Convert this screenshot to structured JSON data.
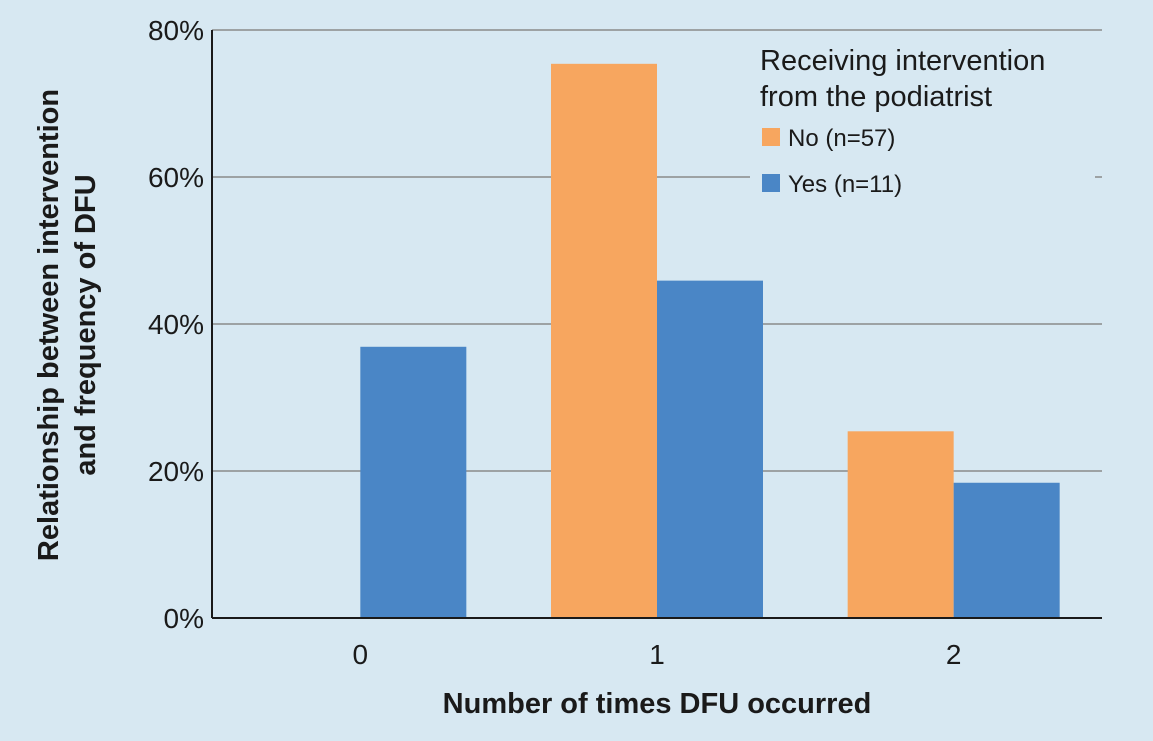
{
  "chart_data": {
    "type": "bar",
    "categories": [
      "0",
      "1",
      "2"
    ],
    "series": [
      {
        "name": "No (n=57)",
        "color": "#f7a65f",
        "values": [
          0,
          75.4,
          25.4
        ]
      },
      {
        "name": "Yes (n=11)",
        "color": "#4a86c6",
        "values": [
          36.9,
          45.9,
          18.4
        ]
      }
    ],
    "title": "",
    "xlabel": "Number of times DFU occurred",
    "ylabel_lines": [
      "Relationship between intervention",
      "and frequency of DFU"
    ],
    "ylim": [
      0,
      80
    ],
    "yticks": [
      0,
      20,
      40,
      60,
      80
    ],
    "ytick_labels": [
      "0%",
      "20%",
      "40%",
      "60%",
      "80%"
    ],
    "grid": true,
    "legend": {
      "title_lines": [
        "Receiving intervention",
        "from the podiatrist"
      ],
      "placement": "top-right"
    },
    "colors": {
      "background": "#d7e8f2",
      "grid": "#8a8a8a"
    }
  }
}
